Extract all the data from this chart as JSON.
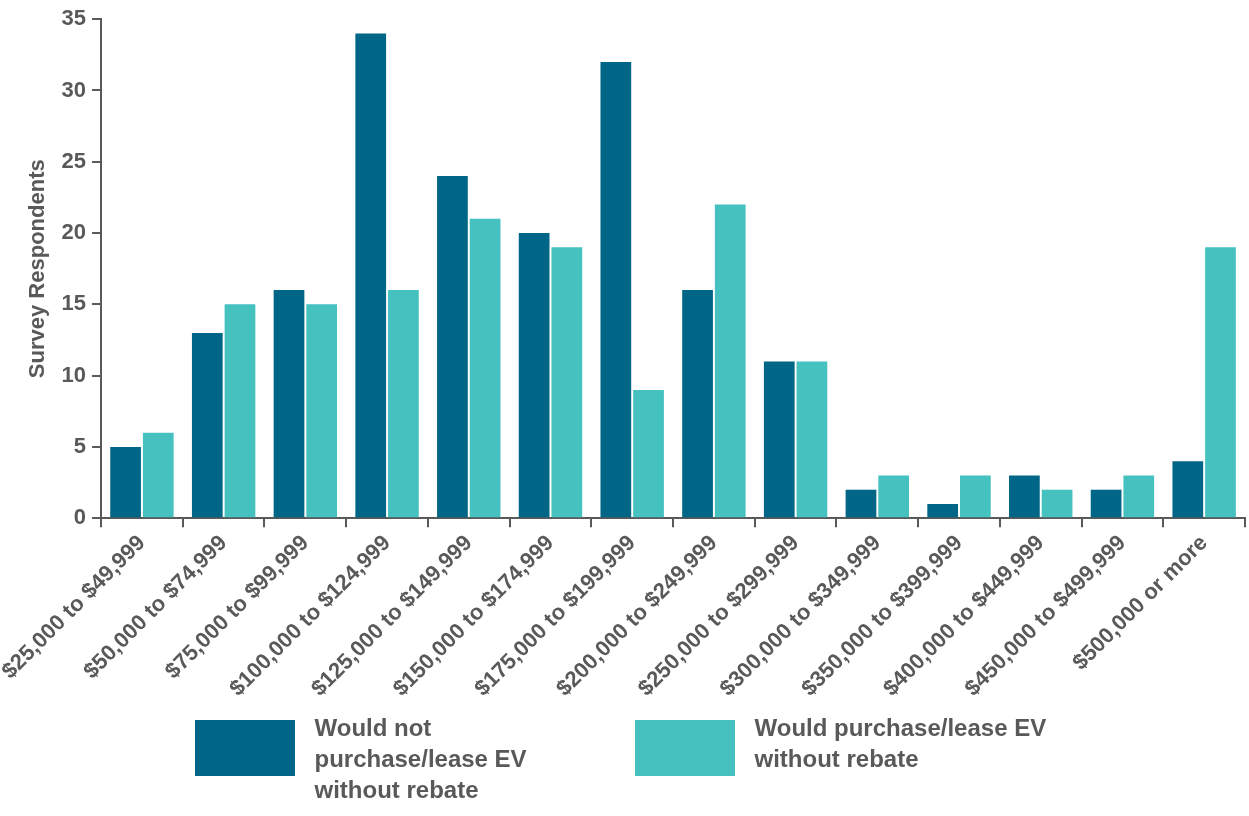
{
  "chart_data": {
    "type": "bar",
    "ylabel": "Survey Respondents",
    "categories": [
      "$25,000 to $49,999",
      "$50,000 to $74,999",
      "$75,000 to $99,999",
      "$100,000 to $124,999",
      "$125,000 to $149,999",
      "$150,000 to $174,999",
      "$175,000 to $199,999",
      "$200,000 to $249,999",
      "$250,000 to $299,999",
      "$300,000 to $349,999",
      "$350,000 to $399,999",
      "$400,000 to $449,999",
      "$450,000 to $499,999",
      "$500,000 or more"
    ],
    "series": [
      {
        "name": "Would not purchase/lease EV without rebate",
        "color": "#006687",
        "values": [
          5,
          13,
          16,
          34,
          24,
          20,
          32,
          16,
          11,
          2,
          1,
          3,
          2,
          4
        ]
      },
      {
        "name": "Would purchase/lease EV without rebate",
        "color": "#45c1c0",
        "values": [
          6,
          15,
          15,
          16,
          21,
          19,
          9,
          22,
          11,
          3,
          3,
          2,
          3,
          19
        ]
      }
    ],
    "ylim": [
      0,
      35
    ],
    "yticks": [
      0,
      5,
      10,
      15,
      20,
      25,
      30,
      35
    ],
    "grid": false,
    "legend": "bottom"
  }
}
